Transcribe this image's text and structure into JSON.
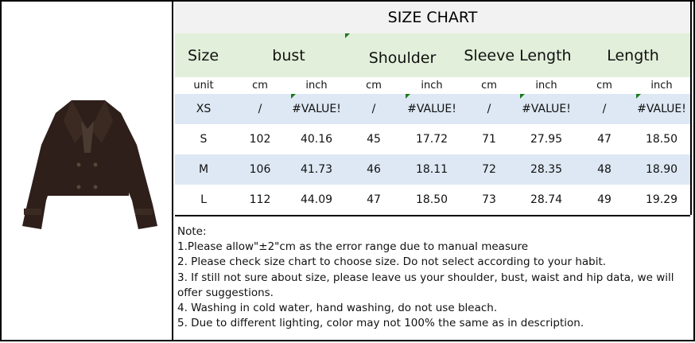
{
  "title": "SIZE CHART",
  "headers": [
    "Size",
    "bust",
    "Shoulder",
    "Sleeve Length",
    "Length"
  ],
  "units": [
    "unit",
    "cm",
    "inch",
    "cm",
    "inch",
    "cm",
    "inch",
    "cm",
    "inch"
  ],
  "rows": [
    [
      "XS",
      "/",
      "#VALUE!",
      "/",
      "#VALUE!",
      "/",
      "#VALUE!",
      "/",
      "#VALUE!"
    ],
    [
      "S",
      "102",
      "40.16",
      "45",
      "17.72",
      "71",
      "27.95",
      "47",
      "18.50"
    ],
    [
      "M",
      "106",
      "41.73",
      "46",
      "18.11",
      "72",
      "28.35",
      "48",
      "18.90"
    ],
    [
      "L",
      "112",
      "44.09",
      "47",
      "18.50",
      "73",
      "28.74",
      "49",
      "19.29"
    ]
  ],
  "notes": [
    "Note:",
    "1.Please allow\"±2\"cm as the error range due to manual measure",
    "2. Please check size chart to choose size. Do not select according to your habit.",
    "3. If still not sure about size, please leave us your shoulder, bust, waist and hip data, we will offer suggestions.",
    "4. Washing in cold water, hand washing, do not use bleach.",
    "5. Due to different lighting, color may not 100% the same as in description."
  ],
  "colors": {
    "header_green": "#e2efda",
    "row_blue": "#dde8f4",
    "title_gray": "#f2f2f2",
    "jacket": "#2e1f1a"
  }
}
